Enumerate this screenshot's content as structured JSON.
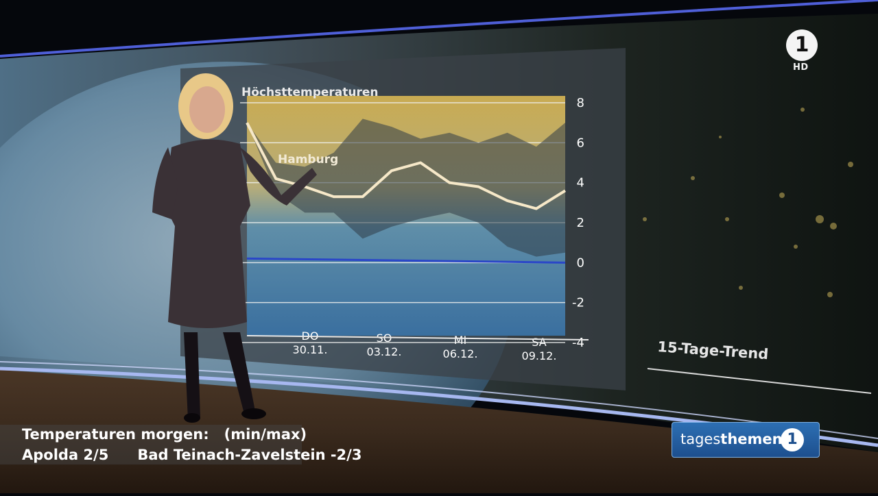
{
  "chart_data": {
    "type": "line",
    "title": "Höchsttemperaturen",
    "series": [
      {
        "name": "Hamburg",
        "values": [
          7,
          4.2,
          3.8,
          3.3,
          3.3,
          4.6,
          5.0,
          4.0,
          3.8,
          3.1,
          2.7,
          3.6
        ]
      }
    ],
    "band_upper": [
      7,
      5,
      4.8,
      5.5,
      7.2,
      6.8,
      6.2,
      6.5,
      6.0,
      6.5,
      5.8,
      7.0
    ],
    "band_lower": [
      7,
      3.5,
      2.5,
      2.5,
      1.2,
      1.8,
      2.2,
      2.5,
      2.0,
      0.8,
      0.3,
      0.5
    ],
    "ylim": [
      -4,
      8
    ],
    "yticks": [
      8,
      6,
      4,
      2,
      0,
      -2,
      -4
    ],
    "xticks": [
      {
        "day": "DO",
        "date": "30.11."
      },
      {
        "day": "SO",
        "date": "03.12."
      },
      {
        "day": "MI",
        "date": "06.12."
      },
      {
        "day": "SA",
        "date": "09.12."
      }
    ],
    "freezing_line": 0,
    "colors": {
      "warm": "#c4aa5a",
      "cool": "#4f86b8",
      "line": "#f6e8c8",
      "zero": "#2a46c8"
    }
  },
  "trend_label": "15-Tage-Trend",
  "logo": {
    "channel": "1",
    "hd": "HD"
  },
  "ticker": {
    "line1_title": "Temperaturen morgen:",
    "line1_unit": "(min/max)",
    "city1": "Apolda 2/5",
    "city2": "Bad Teinach-Zavelstein -2/3"
  },
  "show": {
    "name_light": "tages",
    "name_bold": "themen",
    "icon": "1"
  }
}
